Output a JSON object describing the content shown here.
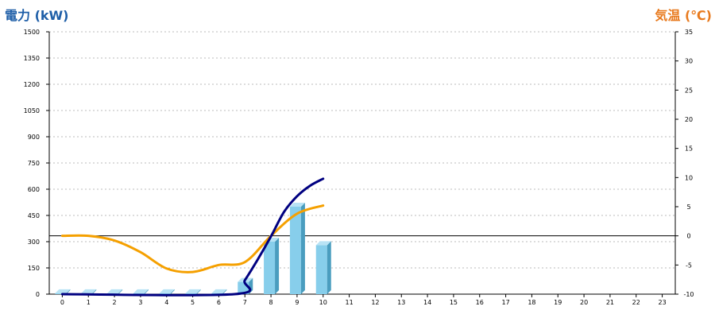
{
  "chart_data": {
    "type": "bar+line",
    "left_axis_title": "電力 (kW)",
    "right_axis_title": "気温 (℃)",
    "colors": {
      "left_title": "#1f5fa8",
      "right_title": "#e87a1e",
      "bar": "#87ceeb",
      "bar_side": "#4a9dbf",
      "bar_top": "#b9e3f5",
      "power_line": "#000080",
      "temp_line": "#f5a000",
      "grid": "#bbbbbb"
    },
    "x": [
      "0",
      "1",
      "2",
      "3",
      "4",
      "5",
      "6",
      "7",
      "8",
      "9",
      "10",
      "11",
      "12",
      "13",
      "14",
      "15",
      "16",
      "17",
      "18",
      "19",
      "20",
      "21",
      "22",
      "23"
    ],
    "left_ylim": [
      0,
      1500
    ],
    "left_ticks": [
      "0",
      "150",
      "300",
      "450",
      "600",
      "750",
      "900",
      "1050",
      "1200",
      "1350",
      "1500"
    ],
    "right_ylim": [
      -10,
      35
    ],
    "right_ticks": [
      "-10",
      "-5",
      "0",
      "5",
      "10",
      "15",
      "20",
      "25",
      "30",
      "35"
    ],
    "grid": true,
    "bars": {
      "values": [
        5,
        5,
        5,
        5,
        5,
        5,
        5,
        70,
        300,
        500,
        280
      ]
    },
    "power_line": {
      "x": [
        0,
        6.6,
        7,
        7.5,
        8,
        8.5,
        9,
        9.5,
        10
      ],
      "y": [
        0,
        0,
        80,
        200,
        330,
        470,
        560,
        620,
        660
      ]
    },
    "temp_line": {
      "x": [
        0,
        1,
        2,
        3,
        4,
        5,
        6,
        7,
        8,
        9,
        10
      ],
      "y": [
        0,
        0,
        -0.8,
        -2.8,
        -5.6,
        -6.2,
        -5.0,
        -4.5,
        0,
        3.8,
        5.2
      ]
    }
  }
}
